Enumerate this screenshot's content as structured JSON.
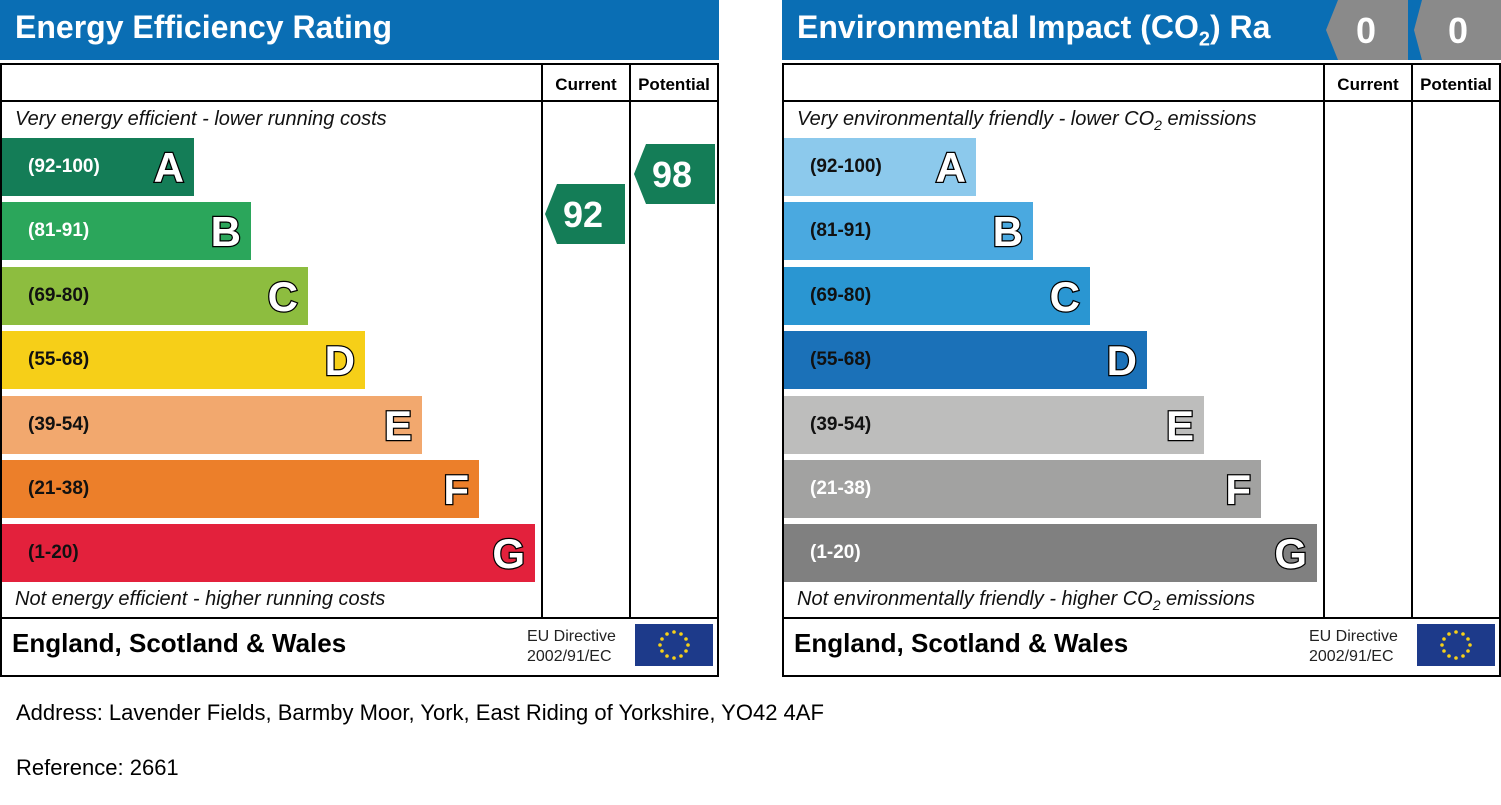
{
  "chart_data": [
    {
      "type": "bar",
      "title": "Energy Efficiency Rating",
      "column_headers": [
        "Current",
        "Potential"
      ],
      "top_note": "Very energy efficient - lower running costs",
      "bottom_note": "Not energy efficient - higher running costs",
      "bands": [
        {
          "letter": "A",
          "range": "(92-100)",
          "color": "#147d57",
          "text_color": "#ffffff"
        },
        {
          "letter": "B",
          "range": "(81-91)",
          "color": "#2ba65b",
          "text_color": "#ffffff"
        },
        {
          "letter": "C",
          "range": "(69-80)",
          "color": "#8dbd3f",
          "text_color": "#111111"
        },
        {
          "letter": "D",
          "range": "(55-68)",
          "color": "#f6cf18",
          "text_color": "#111111"
        },
        {
          "letter": "E",
          "range": "(39-54)",
          "color": "#f2a86e",
          "text_color": "#111111"
        },
        {
          "letter": "F",
          "range": "(21-38)",
          "color": "#ec7f2a",
          "text_color": "#111111"
        },
        {
          "letter": "G",
          "range": "(1-20)",
          "color": "#e3213c",
          "text_color": "#111111"
        }
      ],
      "current": {
        "value": "92",
        "band": "A",
        "color": "#147d57"
      },
      "potential": {
        "value": "98",
        "band": "A",
        "color": "#147d57"
      },
      "region": "England, Scotland & Wales",
      "directive_line1": "EU Directive",
      "directive_line2": "2002/91/EC"
    },
    {
      "type": "bar",
      "title": "Environmental Impact (CO₂) Ra",
      "column_headers": [
        "Current",
        "Potential"
      ],
      "top_note": "Very environmentally friendly - lower CO₂ emissions",
      "bottom_note": "Not environmentally friendly - higher CO₂ emissions",
      "bands": [
        {
          "letter": "A",
          "range": "(92-100)",
          "color": "#8cc9ec",
          "text_color": "#111111"
        },
        {
          "letter": "B",
          "range": "(81-91)",
          "color": "#4aa9e0",
          "text_color": "#111111"
        },
        {
          "letter": "C",
          "range": "(69-80)",
          "color": "#2a96d2",
          "text_color": "#111111"
        },
        {
          "letter": "D",
          "range": "(55-68)",
          "color": "#1b71b8",
          "text_color": "#111111"
        },
        {
          "letter": "E",
          "range": "(39-54)",
          "color": "#bdbdbc",
          "text_color": "#111111"
        },
        {
          "letter": "F",
          "range": "(21-38)",
          "color": "#a2a2a1",
          "text_color": "#ffffff"
        },
        {
          "letter": "G",
          "range": "(1-20)",
          "color": "#808080",
          "text_color": "#ffffff"
        }
      ],
      "current": {
        "value": "0",
        "color": "#8a8a8a"
      },
      "potential": {
        "value": "0",
        "color": "#8a8a8a"
      },
      "region": "England, Scotland & Wales",
      "directive_line1": "EU Directive",
      "directive_line2": "2002/91/EC"
    }
  ],
  "address": "Address: Lavender Fields, Barmby Moor, York, East Riding of Yorkshire, YO42 4AF",
  "reference": "Reference: 2661"
}
